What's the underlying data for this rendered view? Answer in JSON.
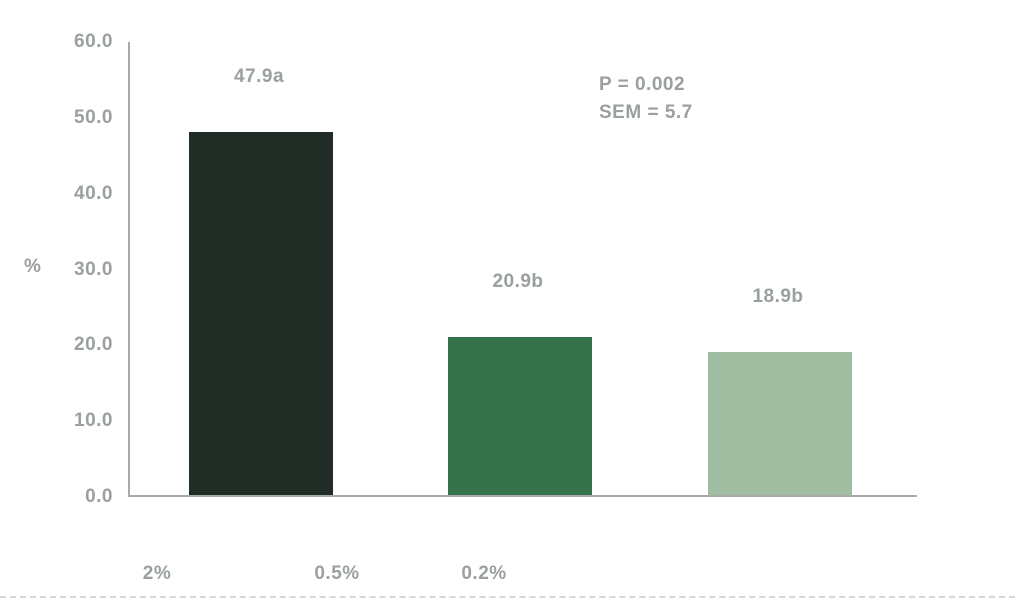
{
  "chart_data": {
    "type": "bar",
    "title": "",
    "xlabel": "",
    "ylabel": "%",
    "categories": [
      "2%",
      "0.5%",
      "0.2%"
    ],
    "values": [
      47.9,
      20.9,
      18.9
    ],
    "bar_labels": [
      "47.9a",
      "20.9b",
      "18.9b"
    ],
    "significance_letters": [
      "a",
      "b",
      "b"
    ],
    "ylim": [
      0,
      60
    ],
    "ytick_step": 10,
    "yticks": [
      "60.0",
      "50.0",
      "40.0",
      "30.0",
      "20.0",
      "10.0",
      "0.0"
    ],
    "grid": false,
    "legend": null,
    "bar_colors": [
      "#1f2d26",
      "#347249",
      "#a0bda2"
    ],
    "text_color": "#9aa19b",
    "axis_color": "#a8aba8",
    "annotation": {
      "p_value": "P = 0.002",
      "sem": "SEM = 5.7"
    }
  }
}
